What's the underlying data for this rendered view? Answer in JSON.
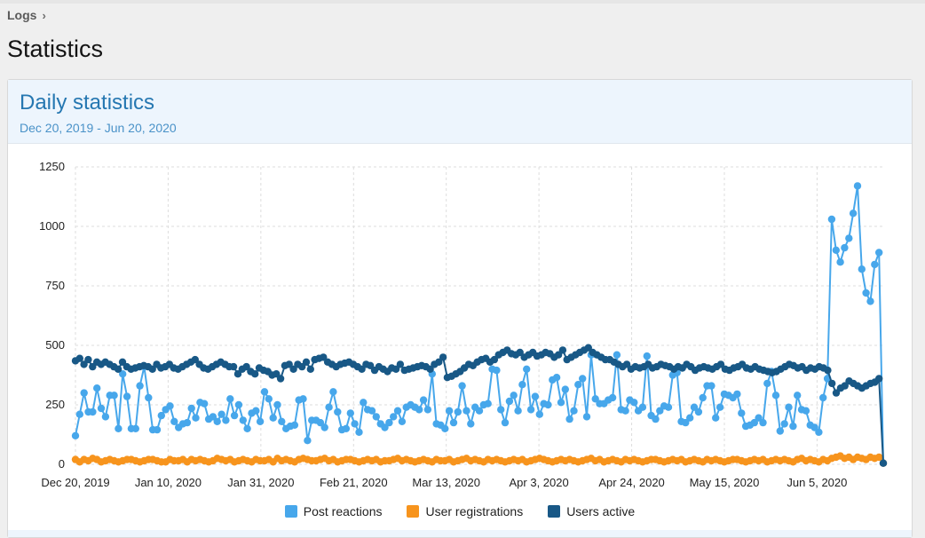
{
  "breadcrumb": {
    "label": "Logs",
    "chevron_icon": "chevron-right-icon"
  },
  "page": {
    "title": "Statistics"
  },
  "block": {
    "title": "Daily statistics",
    "description": "Dec 20, 2019 - Jun 20, 2020"
  },
  "legend": [
    {
      "label": "Post reactions",
      "color": "#47a7eb"
    },
    {
      "label": "User registrations",
      "color": "#f7941d"
    },
    {
      "label": "Users active",
      "color": "#185886"
    }
  ],
  "chart_data": {
    "type": "line",
    "title": "",
    "xlabel": "",
    "ylabel": "",
    "x_start": "2019-12-20",
    "x_end": "2020-06-20",
    "x_tick_labels": [
      "Dec 20, 2019",
      "Jan 10, 2020",
      "Jan 31, 2020",
      "Feb 21, 2020",
      "Mar 13, 2020",
      "Apr 3, 2020",
      "Apr 24, 2020",
      "May 15, 2020",
      "Jun 5, 2020"
    ],
    "y_ticks": [
      0,
      250,
      500,
      750,
      1000,
      1250
    ],
    "ylim": [
      0,
      1250
    ],
    "grid": true,
    "legend_position": "bottom",
    "series": [
      {
        "name": "Post reactions",
        "color": "#47a7eb",
        "values": [
          120,
          210,
          300,
          220,
          220,
          320,
          235,
          200,
          290,
          290,
          150,
          380,
          285,
          150,
          150,
          330,
          410,
          280,
          145,
          145,
          205,
          230,
          245,
          180,
          155,
          170,
          175,
          235,
          195,
          260,
          255,
          190,
          200,
          180,
          210,
          185,
          275,
          205,
          250,
          185,
          150,
          215,
          225,
          180,
          305,
          275,
          195,
          250,
          180,
          150,
          160,
          165,
          270,
          275,
          100,
          185,
          185,
          175,
          155,
          240,
          305,
          220,
          145,
          150,
          215,
          170,
          135,
          260,
          230,
          225,
          200,
          170,
          155,
          175,
          200,
          225,
          180,
          240,
          250,
          240,
          230,
          270,
          230,
          380,
          170,
          165,
          150,
          225,
          175,
          220,
          330,
          225,
          170,
          240,
          225,
          250,
          255,
          400,
          395,
          230,
          175,
          265,
          290,
          225,
          335,
          400,
          230,
          285,
          210,
          255,
          250,
          355,
          365,
          260,
          315,
          190,
          225,
          335,
          360,
          200,
          460,
          275,
          255,
          255,
          270,
          280,
          460,
          230,
          225,
          270,
          260,
          225,
          240,
          455,
          205,
          190,
          225,
          245,
          240,
          375,
          385,
          180,
          175,
          195,
          240,
          220,
          280,
          330,
          330,
          195,
          240,
          295,
          290,
          280,
          295,
          215,
          160,
          165,
          175,
          195,
          175,
          340,
          390,
          290,
          140,
          170,
          240,
          160,
          290,
          230,
          225,
          165,
          155,
          135,
          280,
          360,
          1030,
          900,
          850,
          910,
          950,
          1055,
          1170,
          820,
          720,
          685,
          840,
          890,
          5
        ]
      },
      {
        "name": "User registrations",
        "color": "#f7941d",
        "values": [
          20,
          10,
          20,
          15,
          25,
          20,
          10,
          15,
          20,
          15,
          10,
          15,
          20,
          20,
          15,
          10,
          15,
          20,
          20,
          15,
          10,
          10,
          20,
          15,
          15,
          20,
          10,
          20,
          15,
          20,
          15,
          10,
          15,
          25,
          20,
          15,
          20,
          10,
          15,
          20,
          15,
          10,
          20,
          15,
          15,
          20,
          10,
          25,
          15,
          20,
          15,
          10,
          20,
          25,
          20,
          15,
          15,
          20,
          25,
          15,
          20,
          10,
          15,
          20,
          20,
          15,
          10,
          15,
          20,
          15,
          20,
          10,
          15,
          15,
          20,
          25,
          15,
          20,
          15,
          10,
          15,
          20,
          15,
          10,
          20,
          15,
          15,
          20,
          10,
          15,
          20,
          25,
          15,
          20,
          15,
          10,
          20,
          15,
          20,
          15,
          10,
          15,
          20,
          15,
          20,
          10,
          15,
          20,
          25,
          20,
          15,
          10,
          15,
          20,
          15,
          20,
          15,
          10,
          15,
          20,
          25,
          15,
          20,
          10,
          15,
          20,
          15,
          10,
          20,
          15,
          20,
          15,
          10,
          15,
          20,
          20,
          15,
          10,
          15,
          20,
          15,
          20,
          10,
          15,
          20,
          15,
          10,
          20,
          15,
          20,
          15,
          10,
          15,
          20,
          20,
          15,
          10,
          15,
          20,
          15,
          20,
          10,
          15,
          20,
          15,
          20,
          15,
          10,
          20,
          25,
          15,
          20,
          15,
          10,
          20,
          15,
          25,
          30,
          35,
          25,
          30,
          20,
          30,
          25,
          20,
          30,
          25,
          30,
          5
        ]
      },
      {
        "name": "Users active",
        "color": "#185886",
        "values": [
          435,
          445,
          420,
          440,
          410,
          430,
          420,
          430,
          420,
          410,
          400,
          430,
          410,
          400,
          405,
          410,
          415,
          410,
          400,
          420,
          405,
          410,
          420,
          405,
          400,
          410,
          420,
          430,
          440,
          420,
          405,
          400,
          410,
          420,
          430,
          420,
          410,
          410,
          380,
          400,
          410,
          390,
          380,
          405,
          395,
          390,
          375,
          380,
          360,
          415,
          420,
          400,
          420,
          410,
          430,
          400,
          440,
          445,
          450,
          430,
          420,
          410,
          420,
          425,
          430,
          420,
          410,
          400,
          420,
          415,
          395,
          410,
          400,
          390,
          405,
          400,
          420,
          395,
          400,
          405,
          410,
          415,
          410,
          400,
          420,
          430,
          450,
          365,
          370,
          380,
          390,
          405,
          420,
          415,
          430,
          440,
          445,
          430,
          440,
          460,
          470,
          480,
          465,
          460,
          470,
          450,
          460,
          470,
          455,
          460,
          470,
          465,
          450,
          460,
          480,
          440,
          450,
          460,
          470,
          480,
          490,
          470,
          460,
          450,
          440,
          440,
          430,
          420,
          410,
          420,
          400,
          410,
          405,
          410,
          420,
          405,
          410,
          420,
          415,
          410,
          400,
          410,
          405,
          420,
          410,
          395,
          405,
          410,
          405,
          400,
          410,
          420,
          400,
          395,
          405,
          410,
          420,
          405,
          400,
          410,
          400,
          395,
          390,
          385,
          390,
          400,
          410,
          420,
          415,
          405,
          410,
          395,
          405,
          400,
          410,
          405,
          395,
          340,
          300,
          320,
          330,
          350,
          340,
          330,
          320,
          330,
          340,
          345,
          360,
          5
        ]
      }
    ]
  }
}
